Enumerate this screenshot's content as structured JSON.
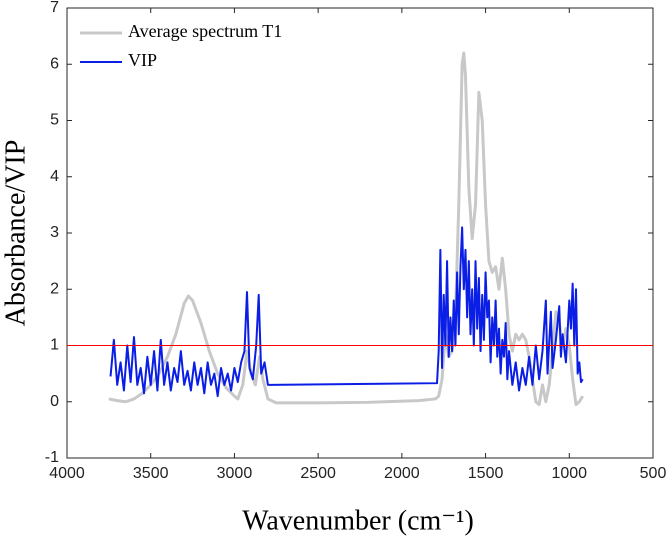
{
  "chart_data": {
    "type": "line",
    "x_label": "Wavenumber (cm⁻¹)",
    "y_label": "Absorbance/VIP",
    "xlim": [
      4000,
      500
    ],
    "xticks": [
      4000,
      3500,
      3000,
      2500,
      2000,
      1500,
      1000,
      500
    ],
    "ylim": [
      -1,
      7
    ],
    "yticks": [
      -1,
      0,
      1,
      2,
      3,
      4,
      5,
      6,
      7
    ],
    "legend": "upper-left",
    "reference_line": {
      "y": 1,
      "color": "#ff0000"
    },
    "series": [
      {
        "name": "Average spectrum T1",
        "color": "#c8c8c8",
        "x": [
          3750,
          3700,
          3650,
          3600,
          3550,
          3500,
          3450,
          3400,
          3350,
          3300,
          3275,
          3250,
          3200,
          3150,
          3100,
          3050,
          3000,
          2980,
          2950,
          2925,
          2900,
          2875,
          2850,
          2830,
          2800,
          2750,
          2500,
          2200,
          1900,
          1800,
          1780,
          1760,
          1740,
          1720,
          1700,
          1680,
          1660,
          1640,
          1630,
          1620,
          1600,
          1580,
          1560,
          1540,
          1520,
          1500,
          1480,
          1460,
          1440,
          1420,
          1400,
          1380,
          1360,
          1340,
          1320,
          1300,
          1280,
          1260,
          1240,
          1220,
          1200,
          1180,
          1160,
          1140,
          1120,
          1100,
          1080,
          1060,
          1040,
          1020,
          1000,
          980,
          960,
          940,
          920
        ],
        "values": [
          0.05,
          0.02,
          0.0,
          0.05,
          0.15,
          0.3,
          0.5,
          0.8,
          1.2,
          1.75,
          1.88,
          1.8,
          1.4,
          0.9,
          0.5,
          0.25,
          0.1,
          0.05,
          0.3,
          0.9,
          0.5,
          0.3,
          0.8,
          0.4,
          0.05,
          -0.02,
          -0.02,
          -0.01,
          0.02,
          0.05,
          0.1,
          0.4,
          1.2,
          0.8,
          0.9,
          1.5,
          3.5,
          6.0,
          6.2,
          5.8,
          3.8,
          2.9,
          3.5,
          5.5,
          5.0,
          3.5,
          2.5,
          2.3,
          2.4,
          2.0,
          2.55,
          2.0,
          1.2,
          0.9,
          1.2,
          1.1,
          1.2,
          1.1,
          0.8,
          0.4,
          0.0,
          -0.05,
          0.3,
          0.0,
          0.3,
          0.9,
          1.6,
          1.4,
          1.0,
          1.3,
          1.0,
          0.4,
          -0.05,
          0.0,
          0.1
        ]
      },
      {
        "name": "VIP",
        "color": "#0a1ee6",
        "x": [
          3740,
          3720,
          3700,
          3680,
          3660,
          3640,
          3620,
          3600,
          3580,
          3560,
          3540,
          3520,
          3500,
          3480,
          3460,
          3440,
          3420,
          3400,
          3380,
          3360,
          3340,
          3320,
          3300,
          3280,
          3260,
          3240,
          3220,
          3200,
          3180,
          3160,
          3140,
          3120,
          3100,
          3080,
          3060,
          3040,
          3020,
          3000,
          2980,
          2960,
          2940,
          2925,
          2910,
          2890,
          2870,
          2855,
          2840,
          2820,
          2800,
          2780,
          1790,
          1780,
          1770,
          1760,
          1750,
          1740,
          1730,
          1720,
          1710,
          1700,
          1690,
          1680,
          1670,
          1660,
          1650,
          1640,
          1630,
          1620,
          1610,
          1600,
          1590,
          1580,
          1570,
          1560,
          1550,
          1540,
          1530,
          1520,
          1510,
          1500,
          1490,
          1480,
          1470,
          1460,
          1450,
          1440,
          1430,
          1420,
          1410,
          1400,
          1390,
          1380,
          1370,
          1360,
          1340,
          1320,
          1300,
          1280,
          1260,
          1240,
          1220,
          1200,
          1180,
          1160,
          1140,
          1130,
          1110,
          1100,
          1080,
          1060,
          1050,
          1040,
          1020,
          1000,
          990,
          980,
          970,
          960,
          950,
          940,
          930,
          920
        ],
        "values": [
          0.45,
          1.1,
          0.3,
          0.7,
          0.2,
          1.0,
          0.35,
          1.15,
          0.3,
          0.6,
          0.15,
          0.8,
          0.3,
          0.9,
          0.2,
          1.1,
          0.3,
          0.7,
          0.2,
          0.6,
          0.35,
          0.9,
          0.3,
          0.55,
          0.2,
          0.7,
          0.3,
          0.6,
          0.15,
          0.7,
          0.3,
          0.5,
          0.1,
          0.6,
          0.3,
          0.5,
          0.2,
          0.6,
          0.35,
          0.7,
          0.9,
          1.95,
          0.6,
          0.4,
          1.0,
          1.9,
          0.5,
          0.7,
          0.3,
          0.3,
          0.33,
          0.9,
          2.7,
          0.6,
          1.9,
          1.0,
          2.5,
          0.8,
          1.5,
          0.9,
          1.8,
          1.0,
          2.3,
          1.2,
          2.4,
          3.1,
          2.0,
          2.7,
          1.5,
          2.5,
          1.2,
          2.0,
          1.0,
          2.5,
          1.3,
          2.2,
          0.9,
          1.9,
          1.1,
          2.3,
          1.5,
          1.8,
          0.7,
          1.5,
          1.0,
          1.8,
          0.8,
          1.3,
          0.5,
          1.1,
          0.8,
          1.4,
          0.4,
          0.9,
          0.3,
          0.7,
          0.2,
          0.6,
          0.3,
          0.8,
          0.3,
          1.0,
          0.4,
          0.9,
          1.8,
          0.5,
          1.6,
          0.6,
          1.1,
          1.7,
          0.8,
          1.2,
          0.7,
          1.8,
          1.3,
          2.1,
          1.0,
          2.0,
          0.5,
          0.7,
          0.35,
          0.4
        ]
      }
    ]
  }
}
